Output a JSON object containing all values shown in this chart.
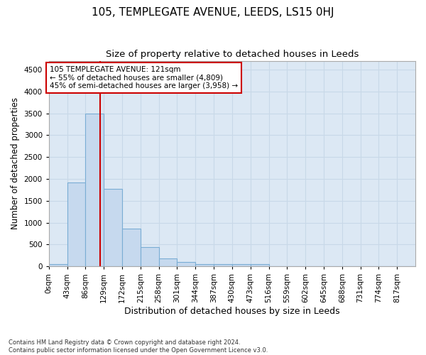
{
  "title": "105, TEMPLEGATE AVENUE, LEEDS, LS15 0HJ",
  "subtitle": "Size of property relative to detached houses in Leeds",
  "xlabel": "Distribution of detached houses by size in Leeds",
  "ylabel": "Number of detached properties",
  "bin_edges": [
    0,
    43,
    86,
    129,
    172,
    215,
    258,
    301,
    344,
    387,
    430,
    473,
    516,
    559,
    602,
    645,
    688,
    731,
    774,
    817,
    860
  ],
  "bar_heights": [
    50,
    1920,
    3500,
    1780,
    860,
    450,
    185,
    110,
    60,
    55,
    50,
    50,
    0,
    0,
    0,
    0,
    0,
    0,
    0,
    0
  ],
  "bar_color": "#c6d9ee",
  "bar_edgecolor": "#7aadd4",
  "property_size": 121,
  "vline_color": "#cc0000",
  "annotation_text": "105 TEMPLEGATE AVENUE: 121sqm\n← 55% of detached houses are smaller (4,809)\n45% of semi-detached houses are larger (3,958) →",
  "annotation_box_color": "#cc0000",
  "annotation_text_color": "#000000",
  "ylim": [
    0,
    4700
  ],
  "yticks": [
    0,
    500,
    1000,
    1500,
    2000,
    2500,
    3000,
    3500,
    4000,
    4500
  ],
  "background_color": "#ffffff",
  "grid_color": "#c8d8e8",
  "footer_line1": "Contains HM Land Registry data © Crown copyright and database right 2024.",
  "footer_line2": "Contains public sector information licensed under the Open Government Licence v3.0.",
  "title_fontsize": 11,
  "subtitle_fontsize": 9.5,
  "tick_fontsize": 7.5,
  "label_fontsize": 9,
  "ylabel_fontsize": 8.5
}
